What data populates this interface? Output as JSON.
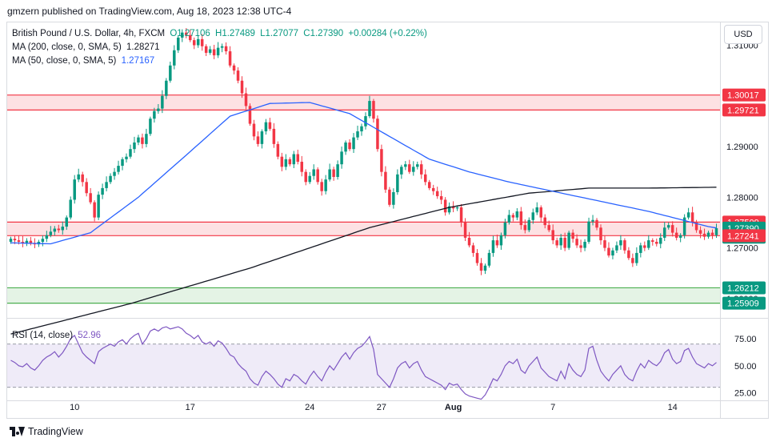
{
  "header": {
    "publisher_line": "gmzern published on TradingView.com, Aug 18, 2023 12:38 UTC-4"
  },
  "legend": {
    "symbol": "British Pound / U.S. Dollar, 4h, FXCM",
    "open": "O1.27106",
    "high": "H1.27489",
    "low": "L1.27077",
    "close": "C1.27390",
    "change": "+0.00284 (+0.22%)",
    "ma200_label": "MA (200, close, 0, SMA, 5)",
    "ma200_value": "1.28271",
    "ma50_label": "MA (50, close, 0, SMA, 5)",
    "ma50_value": "1.27167",
    "rsi_label": "RSI (14, close)",
    "rsi_value": "52.96"
  },
  "currency_button": "USD",
  "price_scale": {
    "ticks": [
      "1.31000",
      "1.30000",
      "1.29000",
      "1.28000",
      "1.27000",
      "1.26000"
    ],
    "badges": [
      {
        "label": "1.30017",
        "value": 1.30017,
        "color": "#f23645"
      },
      {
        "label": "1.29721",
        "value": 1.29721,
        "color": "#f23645"
      },
      {
        "label": "1.27509",
        "value": 1.27509,
        "color": "#f23645"
      },
      {
        "label": "1.27390",
        "value": 1.2739,
        "color": "#089981"
      },
      {
        "label": "21:30",
        "value": 1.2721,
        "color": "#089981"
      },
      {
        "label": "1.27241",
        "value": 1.27241,
        "color": "#f23645"
      },
      {
        "label": "1.26212",
        "value": 1.26212,
        "color": "#089981"
      },
      {
        "label": "1.25909",
        "value": 1.25909,
        "color": "#089981"
      }
    ]
  },
  "rsi_scale": {
    "ticks": [
      "75.00",
      "50.00",
      "25.00"
    ]
  },
  "time_axis": {
    "labels": [
      "10",
      "17",
      "24",
      "27",
      "Aug",
      "7",
      "14"
    ]
  },
  "footer": {
    "brand": "TradingView"
  },
  "colors": {
    "up": "#089981",
    "down": "#f23645",
    "ma200": "#131722",
    "ma50": "#2962ff",
    "rsi": "#7e57c2",
    "resistance_zone": "#f23645",
    "support_zone": "#4caf50"
  },
  "chart_data": {
    "type": "candlestick",
    "symbol": "GBP/USD",
    "timeframe": "4h",
    "y_range": [
      1.2565,
      1.3145
    ],
    "y_ticks": [
      1.31,
      1.3,
      1.29,
      1.28,
      1.27,
      1.26
    ],
    "zones": [
      {
        "kind": "resistance",
        "top": 1.30017,
        "bottom": 1.29721
      },
      {
        "kind": "resistance",
        "top": 1.27509,
        "bottom": 1.27241
      },
      {
        "kind": "support",
        "top": 1.26212,
        "bottom": 1.25909
      }
    ],
    "series_close": [
      1.2718,
      1.2715,
      1.2712,
      1.271,
      1.2714,
      1.2709,
      1.2707,
      1.2712,
      1.2718,
      1.2725,
      1.2732,
      1.2738,
      1.2735,
      1.2742,
      1.276,
      1.2795,
      1.2835,
      1.2845,
      1.283,
      1.2808,
      1.279,
      1.276,
      1.2805,
      1.2818,
      1.283,
      1.2842,
      1.285,
      1.2862,
      1.2875,
      1.288,
      1.2895,
      1.2908,
      1.2918,
      1.2905,
      1.2925,
      1.2955,
      1.297,
      1.2975,
      1.3,
      1.303,
      1.306,
      1.309,
      1.3115,
      1.3125,
      1.312,
      1.311,
      1.31,
      1.3112,
      1.3098,
      1.3085,
      1.3092,
      1.308,
      1.3095,
      1.3098,
      1.3088,
      1.306,
      1.305,
      1.303,
      1.3005,
      1.298,
      1.2945,
      1.292,
      1.2905,
      1.293,
      1.2948,
      1.2935,
      1.2905,
      1.288,
      1.286,
      1.2875,
      1.2865,
      1.2885,
      1.287,
      1.285,
      1.283,
      1.2842,
      1.2855,
      1.283,
      1.2812,
      1.2835,
      1.2855,
      1.284,
      1.2865,
      1.289,
      1.2908,
      1.2895,
      1.2918,
      1.293,
      1.294,
      1.296,
      1.299,
      1.2955,
      1.2895,
      1.285,
      1.2815,
      1.2785,
      1.281,
      1.2845,
      1.286,
      1.2865,
      1.285,
      1.286,
      1.2865,
      1.2845,
      1.283,
      1.2818,
      1.2812,
      1.2802,
      1.2795,
      1.277,
      1.2782,
      1.2778,
      1.278,
      1.275,
      1.272,
      1.2705,
      1.269,
      1.267,
      1.2655,
      1.2665,
      1.269,
      1.2715,
      1.2705,
      1.2725,
      1.275,
      1.2765,
      1.276,
      1.2772,
      1.2745,
      1.2735,
      1.2755,
      1.277,
      1.278,
      1.276,
      1.2745,
      1.2735,
      1.2715,
      1.2705,
      1.272,
      1.27,
      1.273,
      1.2718,
      1.2705,
      1.27,
      1.2712,
      1.2752,
      1.2755,
      1.274,
      1.2715,
      1.27,
      1.2685,
      1.2695,
      1.2705,
      1.2715,
      1.2695,
      1.268,
      1.267,
      1.269,
      1.2705,
      1.27,
      1.2715,
      1.2712,
      1.2708,
      1.272,
      1.274,
      1.2745,
      1.273,
      1.272,
      1.2725,
      1.276,
      1.277,
      1.275,
      1.2735,
      1.2728,
      1.2722,
      1.273,
      1.2725,
      1.2739
    ],
    "ma200_anchors": [
      [
        0,
        1.253
      ],
      [
        30,
        1.259
      ],
      [
        60,
        1.266
      ],
      [
        90,
        1.274
      ],
      [
        110,
        1.278
      ],
      [
        130,
        1.2808
      ],
      [
        145,
        1.2818
      ],
      [
        160,
        1.2818
      ],
      [
        180,
        1.282
      ],
      [
        200,
        1.2827
      ]
    ],
    "ma50_anchors": [
      [
        0,
        1.271
      ],
      [
        10,
        1.2708
      ],
      [
        20,
        1.273
      ],
      [
        32,
        1.28
      ],
      [
        45,
        1.289
      ],
      [
        55,
        1.296
      ],
      [
        65,
        1.2985
      ],
      [
        75,
        1.2987
      ],
      [
        85,
        1.2965
      ],
      [
        95,
        1.292
      ],
      [
        105,
        1.2875
      ],
      [
        115,
        1.285
      ],
      [
        125,
        1.283
      ],
      [
        140,
        1.2805
      ],
      [
        160,
        1.2772
      ],
      [
        175,
        1.2742
      ],
      [
        190,
        1.2722
      ],
      [
        200,
        1.2717
      ]
    ],
    "rsi_ylim": [
      18,
      92
    ],
    "rsi_levels": [
      70,
      30
    ],
    "rsi": [
      55,
      53,
      50,
      49,
      52,
      48,
      46,
      50,
      55,
      58,
      60,
      63,
      58,
      62,
      68,
      75,
      78,
      70,
      62,
      58,
      55,
      52,
      63,
      66,
      68,
      70,
      68,
      72,
      74,
      70,
      75,
      78,
      80,
      70,
      75,
      82,
      84,
      82,
      85,
      86,
      84,
      85,
      86,
      84,
      80,
      78,
      75,
      78,
      72,
      70,
      72,
      68,
      73,
      71,
      66,
      60,
      58,
      52,
      48,
      45,
      38,
      34,
      32,
      40,
      45,
      42,
      38,
      33,
      30,
      38,
      36,
      42,
      40,
      36,
      33,
      40,
      45,
      40,
      36,
      44,
      50,
      46,
      52,
      58,
      62,
      56,
      62,
      66,
      68,
      72,
      77,
      65,
      42,
      38,
      34,
      30,
      38,
      48,
      52,
      54,
      48,
      52,
      54,
      46,
      40,
      38,
      36,
      34,
      32,
      28,
      34,
      32,
      33,
      28,
      24,
      22,
      21,
      20,
      19,
      23,
      30,
      38,
      36,
      42,
      50,
      54,
      52,
      56,
      46,
      43,
      50,
      54,
      58,
      48,
      44,
      40,
      38,
      36,
      45,
      38,
      52,
      46,
      42,
      40,
      46,
      66,
      68,
      55,
      45,
      40,
      36,
      42,
      46,
      50,
      42,
      38,
      36,
      45,
      52,
      48,
      55,
      52,
      50,
      54,
      62,
      65,
      56,
      52,
      54,
      64,
      66,
      58,
      52,
      50,
      48,
      52,
      50,
      53
    ]
  }
}
